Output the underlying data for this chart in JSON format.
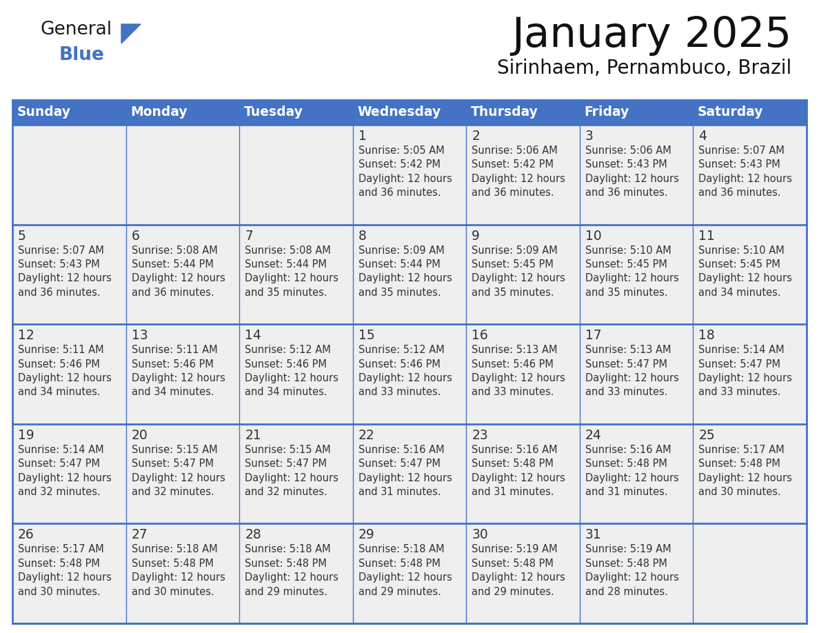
{
  "title": "January 2025",
  "subtitle": "Sirinhaem, Pernambuco, Brazil",
  "days_of_week": [
    "Sunday",
    "Monday",
    "Tuesday",
    "Wednesday",
    "Thursday",
    "Friday",
    "Saturday"
  ],
  "header_bg": "#4472C4",
  "header_text": "#FFFFFF",
  "cell_bg": "#EFEFEF",
  "border_color": "#4472C4",
  "row_sep_color": "#4472C4",
  "text_color": "#333333",
  "day_num_color": "#333333",
  "calendar": [
    [
      null,
      null,
      null,
      {
        "day": 1,
        "sunrise": "5:05 AM",
        "sunset": "5:42 PM",
        "dl_hours": "12 hours",
        "dl_mins": "36 minutes."
      },
      {
        "day": 2,
        "sunrise": "5:06 AM",
        "sunset": "5:42 PM",
        "dl_hours": "12 hours",
        "dl_mins": "36 minutes."
      },
      {
        "day": 3,
        "sunrise": "5:06 AM",
        "sunset": "5:43 PM",
        "dl_hours": "12 hours",
        "dl_mins": "36 minutes."
      },
      {
        "day": 4,
        "sunrise": "5:07 AM",
        "sunset": "5:43 PM",
        "dl_hours": "12 hours",
        "dl_mins": "36 minutes."
      }
    ],
    [
      {
        "day": 5,
        "sunrise": "5:07 AM",
        "sunset": "5:43 PM",
        "dl_hours": "12 hours",
        "dl_mins": "36 minutes."
      },
      {
        "day": 6,
        "sunrise": "5:08 AM",
        "sunset": "5:44 PM",
        "dl_hours": "12 hours",
        "dl_mins": "36 minutes."
      },
      {
        "day": 7,
        "sunrise": "5:08 AM",
        "sunset": "5:44 PM",
        "dl_hours": "12 hours",
        "dl_mins": "35 minutes."
      },
      {
        "day": 8,
        "sunrise": "5:09 AM",
        "sunset": "5:44 PM",
        "dl_hours": "12 hours",
        "dl_mins": "35 minutes."
      },
      {
        "day": 9,
        "sunrise": "5:09 AM",
        "sunset": "5:45 PM",
        "dl_hours": "12 hours",
        "dl_mins": "35 minutes."
      },
      {
        "day": 10,
        "sunrise": "5:10 AM",
        "sunset": "5:45 PM",
        "dl_hours": "12 hours",
        "dl_mins": "35 minutes."
      },
      {
        "day": 11,
        "sunrise": "5:10 AM",
        "sunset": "5:45 PM",
        "dl_hours": "12 hours",
        "dl_mins": "34 minutes."
      }
    ],
    [
      {
        "day": 12,
        "sunrise": "5:11 AM",
        "sunset": "5:46 PM",
        "dl_hours": "12 hours",
        "dl_mins": "34 minutes."
      },
      {
        "day": 13,
        "sunrise": "5:11 AM",
        "sunset": "5:46 PM",
        "dl_hours": "12 hours",
        "dl_mins": "34 minutes."
      },
      {
        "day": 14,
        "sunrise": "5:12 AM",
        "sunset": "5:46 PM",
        "dl_hours": "12 hours",
        "dl_mins": "34 minutes."
      },
      {
        "day": 15,
        "sunrise": "5:12 AM",
        "sunset": "5:46 PM",
        "dl_hours": "12 hours",
        "dl_mins": "33 minutes."
      },
      {
        "day": 16,
        "sunrise": "5:13 AM",
        "sunset": "5:46 PM",
        "dl_hours": "12 hours",
        "dl_mins": "33 minutes."
      },
      {
        "day": 17,
        "sunrise": "5:13 AM",
        "sunset": "5:47 PM",
        "dl_hours": "12 hours",
        "dl_mins": "33 minutes."
      },
      {
        "day": 18,
        "sunrise": "5:14 AM",
        "sunset": "5:47 PM",
        "dl_hours": "12 hours",
        "dl_mins": "33 minutes."
      }
    ],
    [
      {
        "day": 19,
        "sunrise": "5:14 AM",
        "sunset": "5:47 PM",
        "dl_hours": "12 hours",
        "dl_mins": "32 minutes."
      },
      {
        "day": 20,
        "sunrise": "5:15 AM",
        "sunset": "5:47 PM",
        "dl_hours": "12 hours",
        "dl_mins": "32 minutes."
      },
      {
        "day": 21,
        "sunrise": "5:15 AM",
        "sunset": "5:47 PM",
        "dl_hours": "12 hours",
        "dl_mins": "32 minutes."
      },
      {
        "day": 22,
        "sunrise": "5:16 AM",
        "sunset": "5:47 PM",
        "dl_hours": "12 hours",
        "dl_mins": "31 minutes."
      },
      {
        "day": 23,
        "sunrise": "5:16 AM",
        "sunset": "5:48 PM",
        "dl_hours": "12 hours",
        "dl_mins": "31 minutes."
      },
      {
        "day": 24,
        "sunrise": "5:16 AM",
        "sunset": "5:48 PM",
        "dl_hours": "12 hours",
        "dl_mins": "31 minutes."
      },
      {
        "day": 25,
        "sunrise": "5:17 AM",
        "sunset": "5:48 PM",
        "dl_hours": "12 hours",
        "dl_mins": "30 minutes."
      }
    ],
    [
      {
        "day": 26,
        "sunrise": "5:17 AM",
        "sunset": "5:48 PM",
        "dl_hours": "12 hours",
        "dl_mins": "30 minutes."
      },
      {
        "day": 27,
        "sunrise": "5:18 AM",
        "sunset": "5:48 PM",
        "dl_hours": "12 hours",
        "dl_mins": "30 minutes."
      },
      {
        "day": 28,
        "sunrise": "5:18 AM",
        "sunset": "5:48 PM",
        "dl_hours": "12 hours",
        "dl_mins": "29 minutes."
      },
      {
        "day": 29,
        "sunrise": "5:18 AM",
        "sunset": "5:48 PM",
        "dl_hours": "12 hours",
        "dl_mins": "29 minutes."
      },
      {
        "day": 30,
        "sunrise": "5:19 AM",
        "sunset": "5:48 PM",
        "dl_hours": "12 hours",
        "dl_mins": "29 minutes."
      },
      {
        "day": 31,
        "sunrise": "5:19 AM",
        "sunset": "5:48 PM",
        "dl_hours": "12 hours",
        "dl_mins": "28 minutes."
      },
      null
    ]
  ],
  "logo_text_general": "General",
  "logo_text_blue": "Blue",
  "logo_color_general": "#1a1a1a",
  "logo_color_blue": "#4472C4",
  "logo_triangle_color": "#4472C4",
  "fig_width": 11.88,
  "fig_height": 9.18,
  "dpi": 100
}
